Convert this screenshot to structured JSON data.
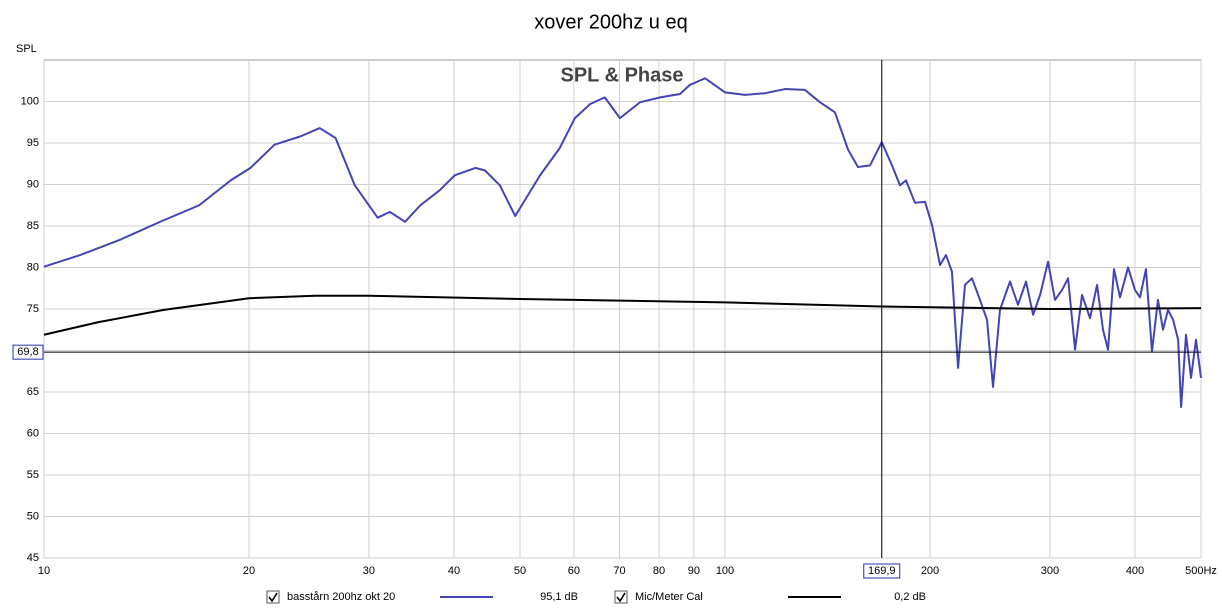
{
  "chart_data": {
    "type": "line",
    "title": "xover 200hz u eq",
    "subtitle": "SPL & Phase",
    "y_label": "SPL",
    "xscale": "log",
    "grid": true,
    "xlim": [
      10,
      500
    ],
    "ylim": [
      45,
      105
    ],
    "xticks": [
      10,
      20,
      30,
      40,
      50,
      60,
      70,
      80,
      90,
      100,
      200,
      300,
      400,
      {
        "value": 500,
        "label": "500Hz"
      }
    ],
    "yticks": [
      45,
      50,
      55,
      60,
      65,
      70,
      75,
      80,
      85,
      90,
      95,
      100
    ],
    "cursor": {
      "x": {
        "value": 169.9,
        "label": "169,9"
      },
      "y": {
        "value": 69.8,
        "label": "69,8"
      }
    },
    "series": [
      {
        "name": "basstårn 200hz okt 20",
        "color": "#4444b4",
        "checked": true,
        "reading": {
          "value": 95.1,
          "label": "95,1 dB"
        },
        "x": [
          10,
          11.3,
          12.9,
          14.8,
          16.9,
          18.8,
          20.1,
          21.8,
          23.8,
          25.4,
          26.8,
          28.6,
          30.9,
          32.2,
          33.9,
          35.7,
          38.1,
          40.1,
          43.0,
          44.4,
          46.7,
          49.2,
          53.5,
          57.2,
          60.2,
          63.4,
          66.6,
          70.1,
          75.0,
          80.3,
          85.9,
          88.8,
          93.5,
          100,
          107,
          114.5,
          122.5,
          131,
          137.9,
          145,
          151.6,
          156.8,
          163.3,
          169.9,
          175.9,
          180.7,
          184.4,
          190.1,
          196.7,
          201.4,
          206.9,
          211.1,
          215.4,
          219.9,
          225.1,
          230.5,
          236.8,
          242.5,
          247.5,
          253.4,
          262.1,
          269.3,
          276.7,
          283.4,
          290.2,
          298.1,
          305.2,
          312.6,
          319.0,
          326.6,
          334.4,
          343.6,
          351.8,
          359.0,
          365.1,
          372.6,
          380.2,
          390.7,
          400,
          406.8,
          415.1,
          423.6,
          432.3,
          439.7,
          447.2,
          454.9,
          462.8,
          467.5,
          475.3,
          483.4,
          491.6,
          500
        ],
        "values": [
          80.1,
          81.5,
          83.3,
          85.5,
          87.5,
          90.5,
          92.0,
          94.8,
          95.8,
          96.8,
          95.6,
          89.9,
          86.0,
          86.7,
          85.5,
          87.5,
          89.3,
          91.1,
          92.0,
          91.7,
          89.9,
          86.2,
          91.1,
          94.4,
          98.0,
          99.7,
          100.5,
          98.0,
          99.9,
          100.5,
          100.9,
          102.0,
          102.8,
          101.1,
          100.8,
          101.0,
          101.5,
          101.4,
          99.9,
          98.7,
          94.2,
          92.1,
          92.3,
          95.1,
          92.3,
          89.9,
          90.5,
          87.8,
          87.9,
          85.1,
          80.3,
          81.5,
          79.5,
          67.9,
          77.9,
          78.7,
          76.1,
          73.7,
          65.6,
          74.9,
          78.3,
          75.5,
          78.3,
          74.3,
          76.7,
          80.7,
          76.1,
          77.3,
          78.7,
          70.1,
          76.7,
          73.9,
          77.9,
          72.5,
          70.1,
          79.8,
          76.4,
          80.0,
          77.3,
          76.4,
          79.8,
          69.9,
          76.1,
          72.5,
          74.9,
          73.7,
          71.3,
          63.2,
          71.9,
          66.7,
          71.3,
          66.7
        ]
      },
      {
        "name": "Mic/Meter Cal",
        "color": "#000000",
        "checked": true,
        "reading": {
          "value": 0.2,
          "label": "0,2 dB"
        },
        "x": [
          10,
          12,
          15,
          20,
          25,
          30,
          50,
          100,
          170,
          300,
          500
        ],
        "values": [
          71.9,
          73.4,
          74.9,
          76.3,
          76.6,
          76.6,
          76.2,
          75.8,
          75.3,
          75.0,
          75.1
        ]
      }
    ]
  }
}
